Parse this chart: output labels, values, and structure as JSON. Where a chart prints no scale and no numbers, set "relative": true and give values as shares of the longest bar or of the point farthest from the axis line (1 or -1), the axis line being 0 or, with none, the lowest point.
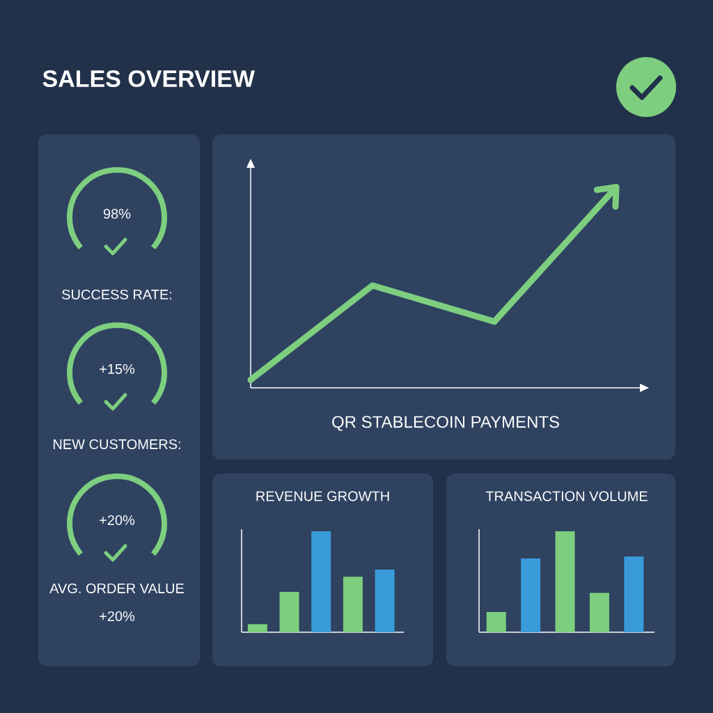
{
  "chart_data": [
    {
      "type": "other",
      "title": "SALES OVERVIEW",
      "annotations": [
        "98%",
        "SUCCESS RATE:",
        "+15%",
        "NEW CUSTOMERS:",
        "+20%",
        "AVG. ORDER VALUE",
        "+20%"
      ]
    },
    {
      "type": "line",
      "title": "QR STABLECOIN PAYMENTS",
      "relative": true,
      "categories": [
        null,
        null,
        null,
        null
      ],
      "series": [
        {
          "color": "#7dcf7f",
          "values": [
            0.04,
            0.51,
            0.33,
            1.0
          ]
        }
      ]
    },
    {
      "type": "bar",
      "title": "REVENUE GROWTH",
      "relative": true,
      "categories": [
        null,
        null,
        null,
        null,
        null
      ],
      "values": [
        0.08,
        0.4,
        1.0,
        0.55,
        0.62
      ],
      "colors": [
        "#7dcf7f",
        "#7dcf7f",
        "#3a9bd9",
        "#7dcf7f",
        "#3a9bd9"
      ]
    },
    {
      "type": "bar",
      "title": "TRANSACTION VOLUME",
      "relative": true,
      "categories": [
        null,
        null,
        null,
        null,
        null
      ],
      "values": [
        0.2,
        0.73,
        1.0,
        0.39,
        0.75
      ],
      "colors": [
        "#7dcf7f",
        "#3a9bd9",
        "#7dcf7f",
        "#7dcf7f",
        "#3a9bd9"
      ]
    }
  ]
}
